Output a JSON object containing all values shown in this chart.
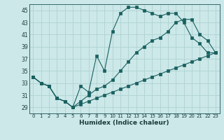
{
  "xlabel": "Humidex (Indice chaleur)",
  "background_color": "#cce8e8",
  "grid_color": "#aacece",
  "line_color": "#1a6060",
  "xlim": [
    -0.5,
    23.5
  ],
  "ylim": [
    28,
    46
  ],
  "xticks": [
    0,
    1,
    2,
    3,
    4,
    5,
    6,
    7,
    8,
    9,
    10,
    11,
    12,
    13,
    14,
    15,
    16,
    17,
    18,
    19,
    20,
    21,
    22,
    23
  ],
  "yticks": [
    29,
    31,
    33,
    35,
    37,
    39,
    41,
    43,
    45
  ],
  "line1_x": [
    0,
    1,
    2,
    3,
    4,
    5,
    6,
    7,
    8,
    9,
    10,
    11,
    12,
    13,
    14,
    15,
    16,
    17,
    18,
    19,
    20,
    21,
    22,
    23
  ],
  "line1_y": [
    34,
    33,
    32.5,
    30.5,
    30,
    29,
    32.5,
    31.5,
    37.5,
    35,
    41.5,
    44.5,
    45.5,
    45.5,
    45,
    44.5,
    44,
    44.5,
    44.5,
    43,
    40.5,
    39.5,
    38,
    38
  ],
  "line2_x": [
    0,
    1,
    2,
    3,
    4,
    5,
    6,
    7,
    8,
    9,
    10,
    11,
    12,
    13,
    14,
    15,
    16,
    17,
    18,
    19,
    20,
    21,
    22,
    23
  ],
  "line2_y": [
    34,
    33,
    32.5,
    30.5,
    30,
    29,
    30,
    31,
    32,
    32.5,
    33.5,
    35,
    36.5,
    38,
    39,
    40,
    40.5,
    41.5,
    43,
    43.5,
    43.5,
    41,
    40,
    38
  ],
  "line3_x": [
    0,
    1,
    2,
    3,
    4,
    5,
    6,
    7,
    8,
    9,
    10,
    11,
    12,
    13,
    14,
    15,
    16,
    17,
    18,
    19,
    20,
    21,
    22,
    23
  ],
  "line3_y": [
    34,
    33,
    32.5,
    30.5,
    30,
    29,
    29.5,
    30,
    30.5,
    31,
    31.5,
    32,
    32.5,
    33,
    33.5,
    34,
    34.5,
    35,
    35.5,
    36,
    36.5,
    37,
    37.5,
    38
  ]
}
